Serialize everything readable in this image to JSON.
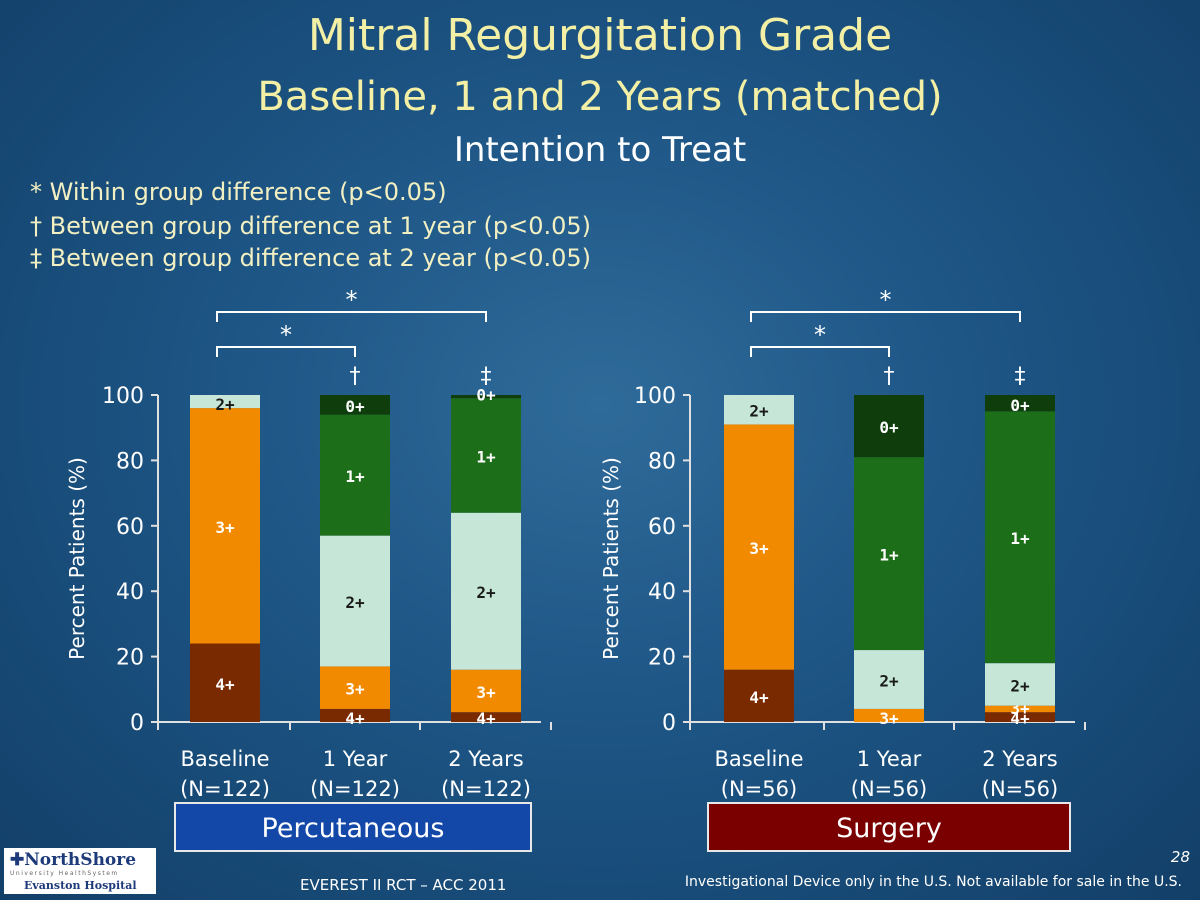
{
  "header": {
    "title": "Mitral Regurgitation Grade",
    "subtitle": "Baseline, 1 and 2 Years (matched)",
    "subtitle2": "Intention to Treat"
  },
  "legend": {
    "star": "* Within group difference (p<0.05)",
    "dagger": "† Between group difference at 1 year (p<0.05)",
    "ddagger": "‡ Between group difference at 2 year (p<0.05)"
  },
  "footer": {
    "citation": "EVEREST II RCT – ACC 2011",
    "disclaimer": "Investigational Device only in the U.S. Not available for sale in the U.S.",
    "page": "28"
  },
  "logo": {
    "name": "✚NorthShore",
    "tagline": "University HealthSystem",
    "hospital": "Evanston Hospital"
  },
  "colors": {
    "4+": "#7a2a00",
    "3+": "#f28a00",
    "2+": "#c6e6d8",
    "1+": "#1c6e18",
    "0+": "#0f3d0c",
    "axis_text": "#ffffff",
    "bracket": "#ffffff"
  },
  "chart_data": [
    {
      "type": "bar",
      "stacked": true,
      "group_label": "Percutaneous",
      "ylabel": "Percent Patients (%)",
      "ylim": [
        0,
        100
      ],
      "yticks": [
        0,
        20,
        40,
        60,
        80,
        100
      ],
      "categories": [
        "Baseline\n(N=122)",
        "1 Year\n(N=122)",
        "2 Years\n(N=122)"
      ],
      "series": [
        {
          "name": "4+",
          "values": [
            24,
            4,
            3
          ]
        },
        {
          "name": "3+",
          "values": [
            72,
            13,
            13
          ]
        },
        {
          "name": "2+",
          "values": [
            4,
            40,
            48
          ]
        },
        {
          "name": "1+",
          "values": [
            0,
            37,
            35
          ]
        },
        {
          "name": "0+",
          "values": [
            0,
            6,
            1
          ]
        }
      ],
      "bracket_marks": [
        {
          "from": 0,
          "to": 2,
          "label": "*"
        },
        {
          "from": 0,
          "to": 1,
          "label": "*"
        }
      ],
      "bar_marks": [
        "",
        "†",
        "‡"
      ]
    },
    {
      "type": "bar",
      "stacked": true,
      "group_label": "Surgery",
      "ylabel": "Percent Patients (%)",
      "ylim": [
        0,
        100
      ],
      "yticks": [
        0,
        20,
        40,
        60,
        80,
        100
      ],
      "categories": [
        "Baseline\n(N=56)",
        "1 Year\n(N=56)",
        "2 Years\n(N=56)"
      ],
      "series": [
        {
          "name": "4+",
          "values": [
            16,
            0,
            3
          ]
        },
        {
          "name": "3+",
          "values": [
            75,
            4,
            2
          ]
        },
        {
          "name": "2+",
          "values": [
            9,
            18,
            13
          ]
        },
        {
          "name": "1+",
          "values": [
            0,
            59,
            77
          ]
        },
        {
          "name": "0+",
          "values": [
            0,
            19,
            5
          ]
        }
      ],
      "bracket_marks": [
        {
          "from": 0,
          "to": 2,
          "label": "*"
        },
        {
          "from": 0,
          "to": 1,
          "label": "*"
        }
      ],
      "bar_marks": [
        "",
        "†",
        "‡"
      ]
    }
  ]
}
